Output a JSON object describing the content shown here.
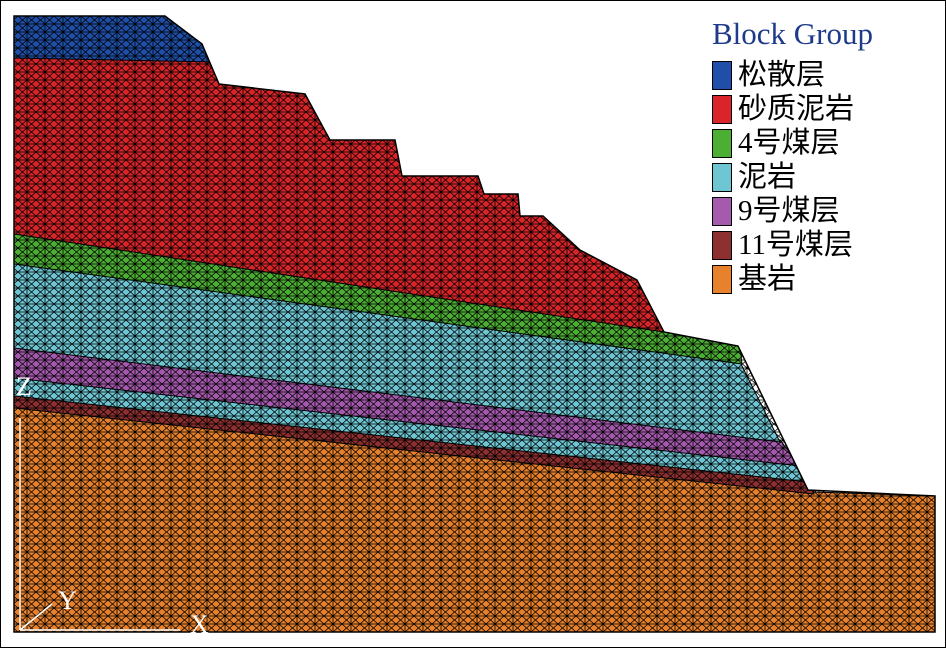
{
  "legend": {
    "title": "Block Group",
    "items": [
      {
        "label": "松散层",
        "color": "#1f4fa8"
      },
      {
        "label": "砂质泥岩",
        "color": "#d9252a"
      },
      {
        "label": "4号煤层",
        "color": "#4caf33"
      },
      {
        "label": "泥岩",
        "color": "#6ec6d3"
      },
      {
        "label": "9号煤层",
        "color": "#a65aae"
      },
      {
        "label": "11号煤层",
        "color": "#8e2f30"
      },
      {
        "label": "基岩",
        "color": "#e8812c"
      }
    ]
  },
  "axes": {
    "z": "Z",
    "y": "Y",
    "x": "X"
  },
  "mesh_color": "#000000"
}
